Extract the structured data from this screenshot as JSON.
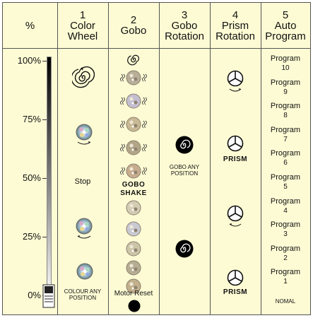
{
  "headers": {
    "percent": "%",
    "color_wheel": {
      "num": "1",
      "line1": "Color",
      "line2": "Wheel"
    },
    "gobo": {
      "num": "2",
      "line1": "Gobo",
      "line2": ""
    },
    "gobo_rotation": {
      "num": "3",
      "line1": "Gobo",
      "line2": "Rotation"
    },
    "prism_rotation": {
      "num": "4",
      "line1": "Prism",
      "line2": "Rotation"
    },
    "auto_program": {
      "num": "5",
      "line1": "Auto",
      "line2": "Program"
    }
  },
  "scale": [
    "100%",
    "75%",
    "50%",
    "25%",
    "0%"
  ],
  "color_wheel": {
    "stop": "Stop",
    "colour_any_line1": "COLOUR ANY",
    "colour_any_line2": "POSITION"
  },
  "gobo": {
    "shake_line1": "GOBO",
    "shake_line2": "SHAKE",
    "motor_reset": "Motor Reset"
  },
  "gobo_rotation": {
    "any_line1": "GOBO ANY",
    "any_line2": "POSITION"
  },
  "prism": {
    "label_1": "PRISM",
    "label_2": "PRISM"
  },
  "programs": [
    {
      "label": "Program",
      "n": "10"
    },
    {
      "label": "Program",
      "n": "9"
    },
    {
      "label": "Program",
      "n": "8"
    },
    {
      "label": "Program",
      "n": "7"
    },
    {
      "label": "Program",
      "n": "6"
    },
    {
      "label": "Program",
      "n": "5"
    },
    {
      "label": "Program",
      "n": "4"
    },
    {
      "label": "Program",
      "n": "3"
    },
    {
      "label": "Program",
      "n": "2"
    },
    {
      "label": "Program",
      "n": "1"
    }
  ],
  "nomal": "NOMAL",
  "colors": {
    "background": "#fdfbd4",
    "border": "#555555",
    "slider_top": "#000000",
    "slider_bottom": "#ffffff"
  },
  "icons": [
    "spiral-icon",
    "color-disc-icon",
    "gobo-disc-icon",
    "gobo-shake-icon",
    "rotating-gobo-icon",
    "prism-icon",
    "motor-reset-dot-icon",
    "fader-knob-icon"
  ]
}
